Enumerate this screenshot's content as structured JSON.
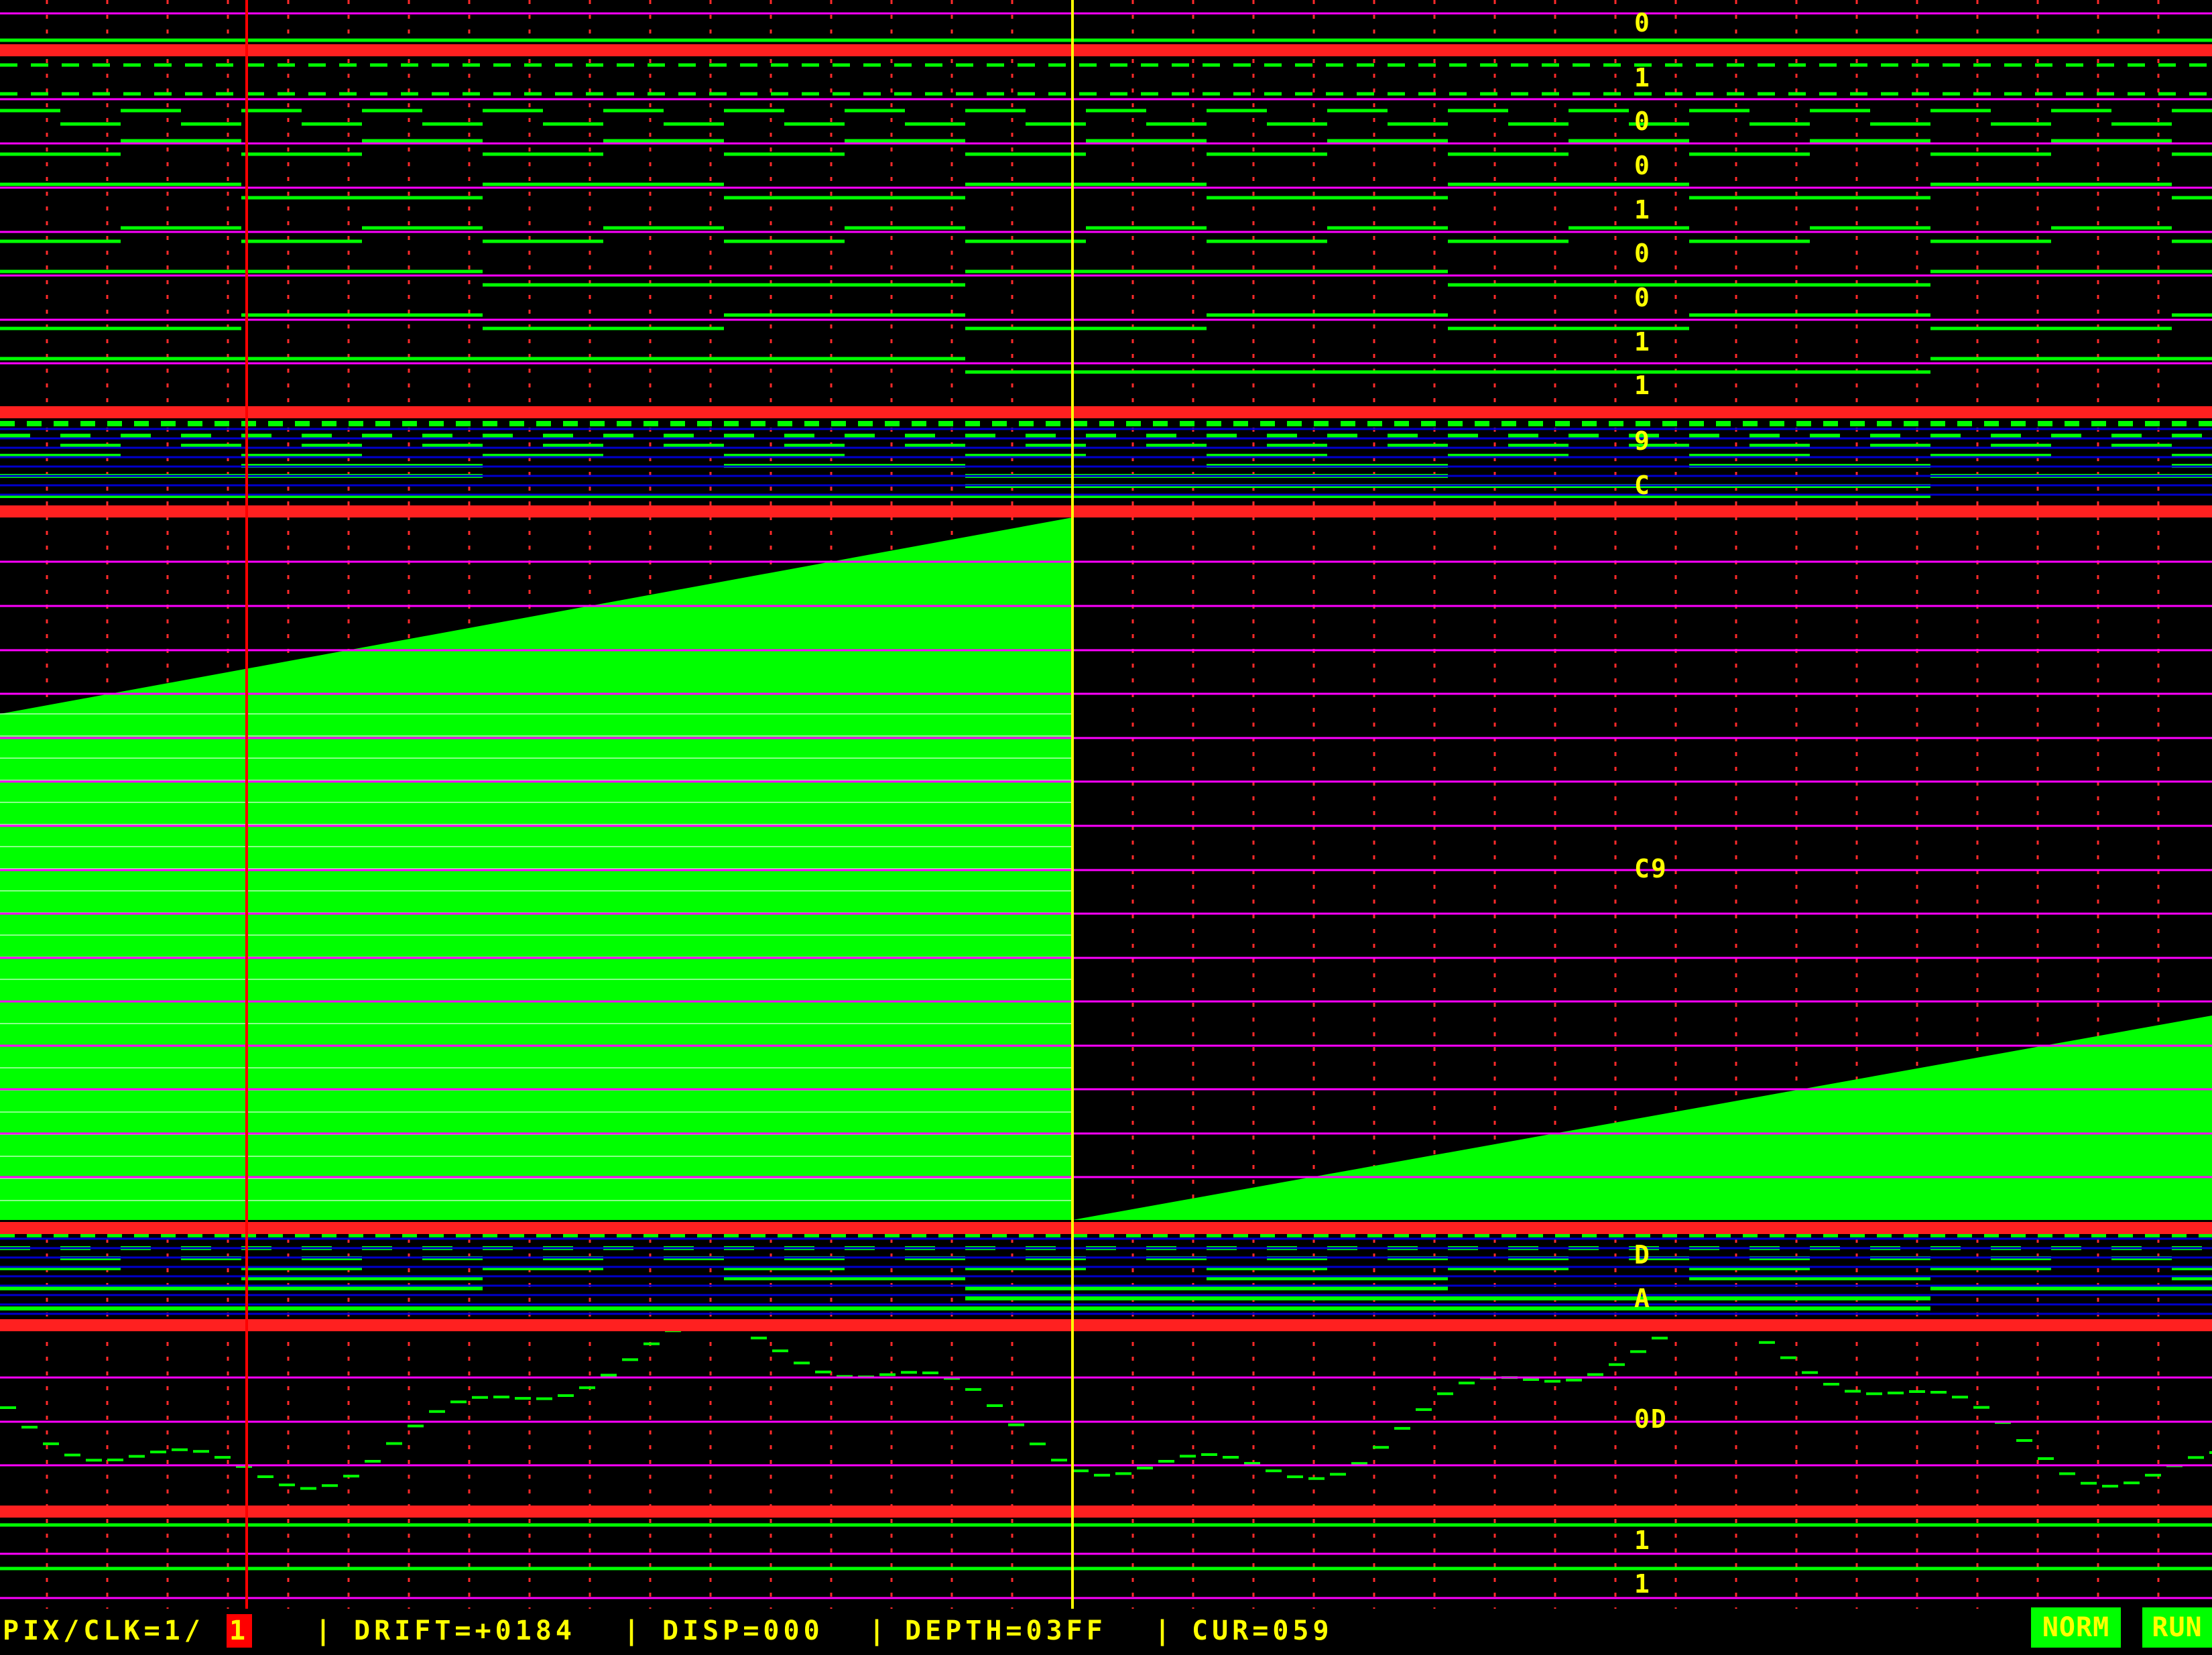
{
  "colors": {
    "background": "#000000",
    "trace": "#00ff00",
    "separator": "#ff2020",
    "rule": "#ff00ff",
    "grid": "#ff2a2a",
    "bus": "#0000cc",
    "cursor": "#ffff00",
    "marker": "#ff0000",
    "text": "#ffff00"
  },
  "channels": {
    "bits_top": [
      "0",
      "1",
      "0",
      "0",
      "1",
      "0",
      "0",
      "1",
      "1"
    ],
    "nibbles_a": [
      "9",
      "C"
    ],
    "analog_value": "C9",
    "nibbles_b": [
      "D",
      "A"
    ],
    "wave_value": "0D",
    "bits_bottom": [
      "1",
      "1"
    ]
  },
  "status": {
    "pix_clk_label": "PIX/CLK=1/",
    "pix_clk_value": "1",
    "drift": "DRIFT=+0184",
    "disp": "DISP=000",
    "depth": "DEPTH=03FF",
    "cur": "CUR=059",
    "sep": "|"
  },
  "buttons": {
    "norm": "NORM",
    "run": "RUN"
  }
}
